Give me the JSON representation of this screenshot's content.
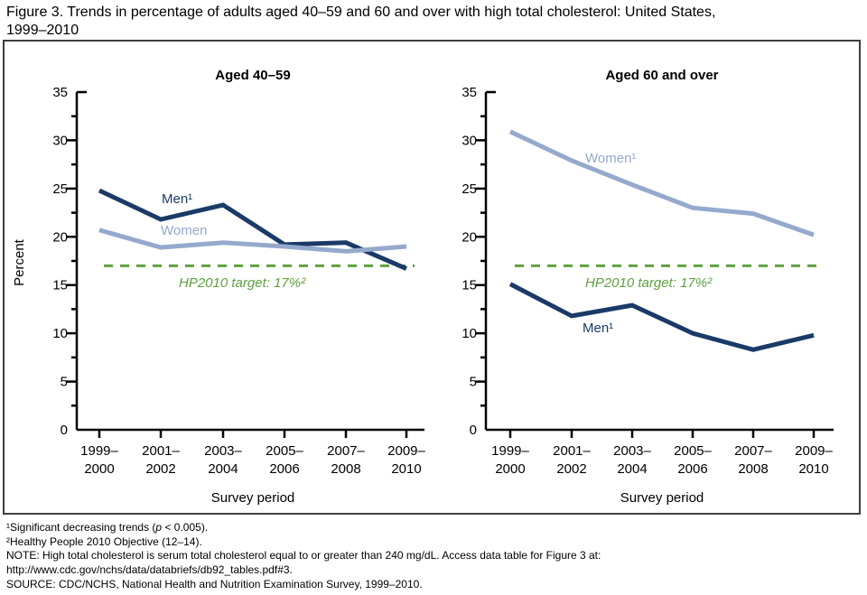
{
  "figure_title": {
    "line1": "Figure 3. Trends in percentage of adults aged 40–59 and 60 and over with high total cholesterol: United States,",
    "line2": "1999–2010"
  },
  "colors": {
    "men_line": "#1a3a67",
    "women_line": "#95a9cd",
    "target_line": "#5ea13f",
    "axis": "#000000",
    "border": "#3f3f3f"
  },
  "chart_data": [
    {
      "type": "line",
      "title": "Aged 40–59",
      "xlabel": "Survey period",
      "ylabel": "Percent",
      "ylim": [
        0,
        35
      ],
      "ytick_step": 5,
      "y_tick_labels": [
        "0",
        "5",
        "10",
        "15",
        "20",
        "25",
        "30",
        "35"
      ],
      "categories": [
        "1999–2000",
        "2001–2002",
        "2003–2004",
        "2005–2006",
        "2007–2008",
        "2009–2010"
      ],
      "x_tick_labels": [
        [
          "1999–",
          "2000"
        ],
        [
          "2001–",
          "2002"
        ],
        [
          "2003–",
          "2004"
        ],
        [
          "2005–",
          "2006"
        ],
        [
          "2007–",
          "2008"
        ],
        [
          "2009–",
          "2010"
        ]
      ],
      "series": [
        {
          "name": "Men¹",
          "color": "#1a3a67",
          "values": [
            24.8,
            21.8,
            23.3,
            19.2,
            19.4,
            16.7
          ]
        },
        {
          "name": "Women",
          "color": "#95a9cd",
          "values": [
            20.7,
            18.9,
            19.4,
            19.0,
            18.5,
            19.0
          ]
        }
      ],
      "target_line": {
        "label": "HP2010 target: 17%²",
        "value": 17,
        "color": "#5ea13f"
      },
      "legend_position": "inline-labels",
      "grid": false
    },
    {
      "type": "line",
      "title": "Aged 60 and over",
      "xlabel": "Survey period",
      "ylabel": "",
      "ylim": [
        0,
        35
      ],
      "ytick_step": 5,
      "y_tick_labels": [
        "0",
        "5",
        "10",
        "15",
        "20",
        "25",
        "30",
        "35"
      ],
      "categories": [
        "1999–2000",
        "2001–2002",
        "2003–2004",
        "2005–2006",
        "2007–2008",
        "2009–2010"
      ],
      "x_tick_labels": [
        [
          "1999–",
          "2000"
        ],
        [
          "2001–",
          "2002"
        ],
        [
          "2003–",
          "2004"
        ],
        [
          "2005–",
          "2006"
        ],
        [
          "2007–",
          "2008"
        ],
        [
          "2009–",
          "2010"
        ]
      ],
      "series": [
        {
          "name": "Women¹",
          "color": "#95a9cd",
          "values": [
            30.9,
            27.9,
            25.4,
            23.0,
            22.4,
            20.2
          ]
        },
        {
          "name": "Men¹",
          "color": "#1a3a67",
          "values": [
            15.1,
            11.8,
            12.9,
            10.0,
            8.3,
            9.8
          ]
        }
      ],
      "target_line": {
        "label": "HP2010 target: 17%²",
        "value": 17,
        "color": "#5ea13f"
      },
      "legend_position": "inline-labels",
      "grid": false
    }
  ],
  "footnotes": {
    "note1_pre": "¹Significant decreasing trends (",
    "note1_italic": "p",
    "note1_post": " < 0.005).",
    "note2": "²Healthy People 2010 Objective (12–14).",
    "note3": "NOTE: High total cholesterol is serum total cholesterol equal to or greater than 240 mg/dL. Access data table for Figure 3 at:",
    "note4": "http://www.cdc.gov/nchs/data/databriefs/db92_tables.pdf#3.",
    "note5": "SOURCE: CDC/NCHS, National Health and Nutrition Examination Survey, 1999–2010."
  }
}
